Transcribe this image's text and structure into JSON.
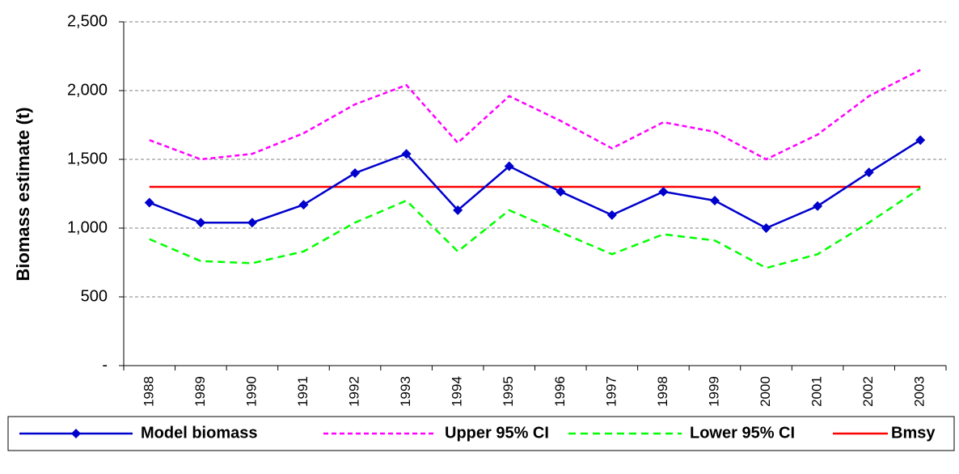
{
  "chart_data": {
    "type": "line",
    "y_label": "Biomass estimate (t)",
    "categories": [
      "1988",
      "1989",
      "1990",
      "1991",
      "1992",
      "1993",
      "1994",
      "1995",
      "1996",
      "1997",
      "1998",
      "1999",
      "2000",
      "2001",
      "2002",
      "2003"
    ],
    "series": [
      {
        "name": "Model biomass",
        "color": "#0000cc",
        "dash": "solid",
        "marker": "diamond",
        "values": [
          1185,
          1040,
          1040,
          1170,
          1400,
          1540,
          1130,
          1450,
          1265,
          1095,
          1265,
          1200,
          1000,
          1160,
          1405,
          1640
        ]
      },
      {
        "name": "Upper 95% CI",
        "color": "#ff00ff",
        "dash": "short",
        "values": [
          1640,
          1500,
          1540,
          1690,
          1900,
          2040,
          1620,
          1960,
          1780,
          1580,
          1770,
          1700,
          1500,
          1680,
          1960,
          2150
        ]
      },
      {
        "name": "Lower 95% CI",
        "color": "#00ff00",
        "dash": "long",
        "values": [
          920,
          760,
          745,
          830,
          1040,
          1200,
          830,
          1130,
          970,
          810,
          955,
          910,
          710,
          810,
          1040,
          1290
        ]
      },
      {
        "name": "Bmsy",
        "color": "#ff0000",
        "dash": "solid",
        "values": [
          1300,
          1300,
          1300,
          1300,
          1300,
          1300,
          1300,
          1300,
          1300,
          1300,
          1300,
          1300,
          1300,
          1300,
          1300,
          1300
        ]
      }
    ],
    "ylim": [
      0,
      2500
    ],
    "yticks": [
      {
        "value": 0,
        "label": "-"
      },
      500,
      {
        "value": 1000,
        "label": "1,000"
      },
      {
        "value": 1500,
        "label": "1,500"
      },
      {
        "value": 2000,
        "label": "2,000"
      },
      {
        "value": 2500,
        "label": "2,500"
      }
    ],
    "grid": true
  }
}
